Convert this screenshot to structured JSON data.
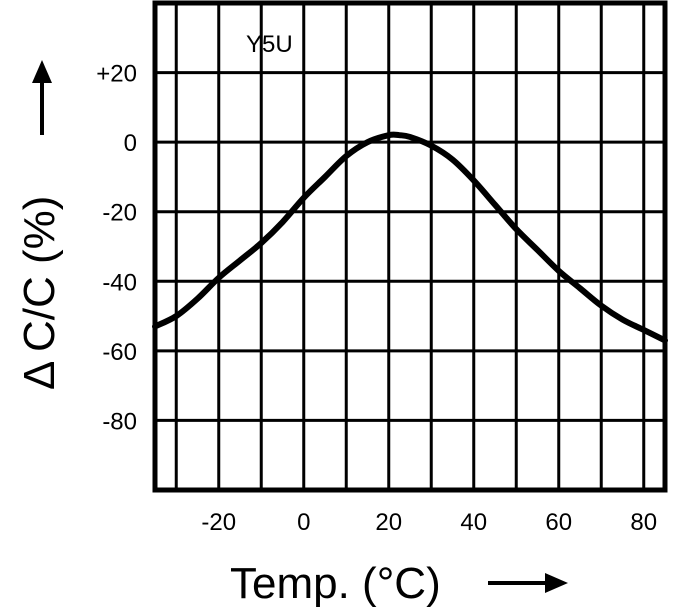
{
  "chart_data": {
    "type": "line",
    "title": "",
    "xlabel": "Temp. (°C)",
    "ylabel": "Δ C/C (%)",
    "xlim": [
      -35,
      85
    ],
    "ylim": [
      -100,
      40
    ],
    "grid": true,
    "x_ticks": [
      -20,
      0,
      20,
      40,
      60,
      80
    ],
    "y_ticks": [
      20,
      0,
      -20,
      -40,
      -60,
      -80
    ],
    "x_tick_labels": [
      "-20",
      "0",
      "20",
      "40",
      "60",
      "80"
    ],
    "y_tick_labels": [
      "+20",
      "0",
      "-20",
      "-40",
      "-60",
      "-80"
    ],
    "series": [
      {
        "name": "Y5U",
        "x": [
          -35,
          -30,
          -25,
          -20,
          -15,
          -10,
          -5,
          0,
          5,
          10,
          15,
          20,
          22.5,
          25,
          30,
          35,
          40,
          45,
          50,
          55,
          60,
          65,
          70,
          75,
          80,
          85
        ],
        "y": [
          -53,
          -50,
          -45,
          -39,
          -34,
          -29,
          -23,
          -16,
          -10,
          -4,
          0,
          2,
          2,
          1.5,
          -1,
          -5,
          -11,
          -18,
          -25,
          -31,
          -37,
          -42,
          -47,
          -51,
          -54,
          -57
        ]
      }
    ]
  },
  "labels": {
    "series_label": "Y5U",
    "xlabel": "Temp. (°C)",
    "ylabel_delta": "Δ",
    "ylabel_text": "C/C (%)"
  },
  "colors": {
    "line": "#000000",
    "grid": "#000000",
    "background": "#ffffff"
  }
}
